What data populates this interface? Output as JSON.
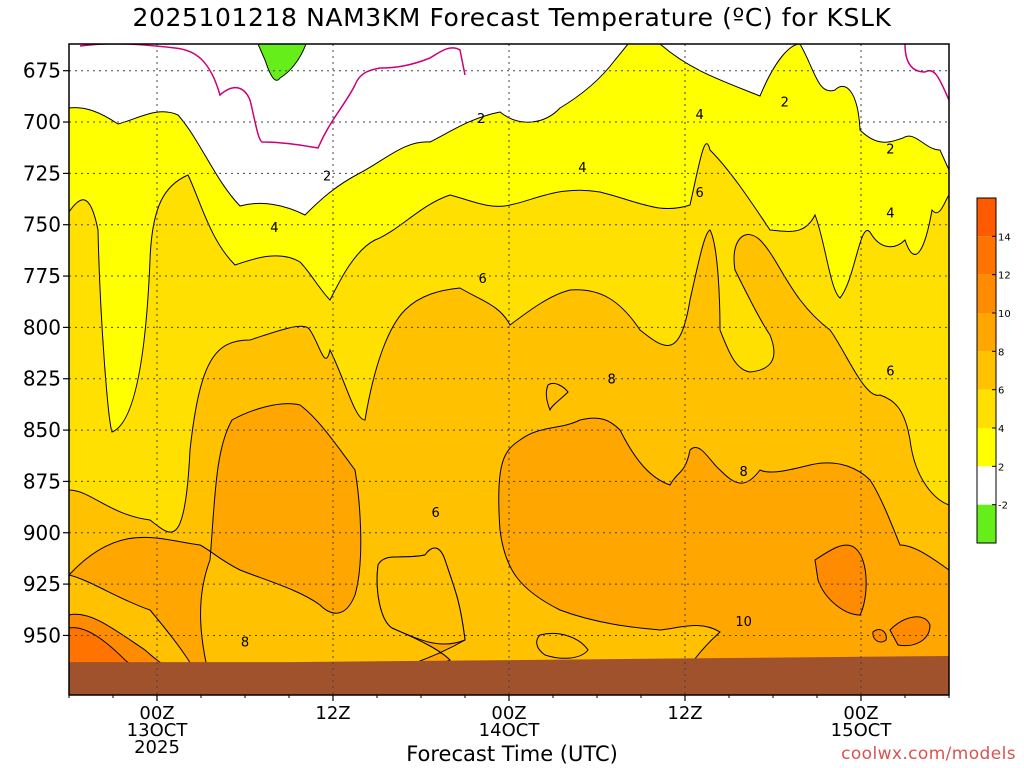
{
  "chart_data": {
    "type": "heatmap",
    "title": "2025101218 NAM3KM Forecast Temperature (ºC) for KSLK",
    "xlabel": "Forecast Time (UTC)",
    "ylabel": "",
    "y_ticks": [
      "675",
      "700",
      "725",
      "750",
      "775",
      "800",
      "825",
      "850",
      "875",
      "900",
      "925",
      "950"
    ],
    "x_ticks": [
      {
        "hour": 6,
        "lines": [
          "00Z",
          "13OCT",
          "2025"
        ]
      },
      {
        "hour": 18,
        "lines": [
          "12Z"
        ]
      },
      {
        "hour": 30,
        "lines": [
          "00Z",
          "14OCT"
        ]
      },
      {
        "hour": 42,
        "lines": [
          "12Z"
        ]
      },
      {
        "hour": 54,
        "lines": [
          "00Z",
          "15OCT"
        ]
      }
    ],
    "x_range_hours": [
      0,
      60
    ],
    "y_range_hpa": [
      662,
      979
    ],
    "ground_level_hpa": [
      963,
      963,
      962,
      961,
      960
    ],
    "colorbar": {
      "ticks": [
        "-2",
        "2",
        "4",
        "6",
        "8",
        "10",
        "12",
        "14"
      ],
      "bands": [
        {
          "range": "< -2",
          "color": "#66ee1a"
        },
        {
          "range": "-2 to 2",
          "color": "#ffffff"
        },
        {
          "range": "2 to 4",
          "color": "#ffff00"
        },
        {
          "range": "4 to 6",
          "color": "#ffe000"
        },
        {
          "range": "6 to 8",
          "color": "#ffc100"
        },
        {
          "range": "8 to 10",
          "color": "#ffa600"
        },
        {
          "range": "10 to 12",
          "color": "#ff8c00"
        },
        {
          "range": "12 to 14",
          "color": "#ff7300"
        },
        {
          "range": "> 14",
          "color": "#ff5a00"
        }
      ]
    },
    "contour_labels": [
      {
        "text": "2",
        "hour": 17.6,
        "hpa": 726
      },
      {
        "text": "2",
        "hour": 28.1,
        "hpa": 698
      },
      {
        "text": "2",
        "hour": 48.8,
        "hpa": 690
      },
      {
        "text": "2",
        "hour": 56.0,
        "hpa": 713
      },
      {
        "text": "4",
        "hour": 14.0,
        "hpa": 751
      },
      {
        "text": "4",
        "hour": 35.0,
        "hpa": 722
      },
      {
        "text": "4",
        "hour": 43.0,
        "hpa": 696
      },
      {
        "text": "4",
        "hour": 56.0,
        "hpa": 744
      },
      {
        "text": "6",
        "hour": 28.2,
        "hpa": 776
      },
      {
        "text": "6",
        "hour": 43.0,
        "hpa": 734
      },
      {
        "text": "6",
        "hour": 56.0,
        "hpa": 821
      },
      {
        "text": "6",
        "hour": 25.0,
        "hpa": 890
      },
      {
        "text": "8",
        "hour": 37.0,
        "hpa": 825
      },
      {
        "text": "8",
        "hour": 46.0,
        "hpa": 870
      },
      {
        "text": "8",
        "hour": 12.0,
        "hpa": 953
      },
      {
        "text": "10",
        "hour": 46.0,
        "hpa": 943
      }
    ],
    "temperature_bands": [
      {
        "range": "< -2",
        "color": "#66ee1a"
      },
      {
        "range": "-2 to 2",
        "color": "#ffffff"
      },
      {
        "range": "2 to 4",
        "color": "#ffff00"
      },
      {
        "range": "4 to 6",
        "color": "#ffe000"
      },
      {
        "range": "6 to 8",
        "color": "#ffc100"
      },
      {
        "range": "8 to 10",
        "color": "#ffa600"
      },
      {
        "range": "10 to 12",
        "color": "#ff8c00"
      },
      {
        "range": "12 to 14",
        "color": "#ff7300"
      }
    ],
    "grid": true
  },
  "footer": {
    "watermark": "coolwx.com/models"
  },
  "colors": {
    "ground": "#a0522d",
    "freezing_line": "#cc0077",
    "contour_line": "#000000"
  }
}
